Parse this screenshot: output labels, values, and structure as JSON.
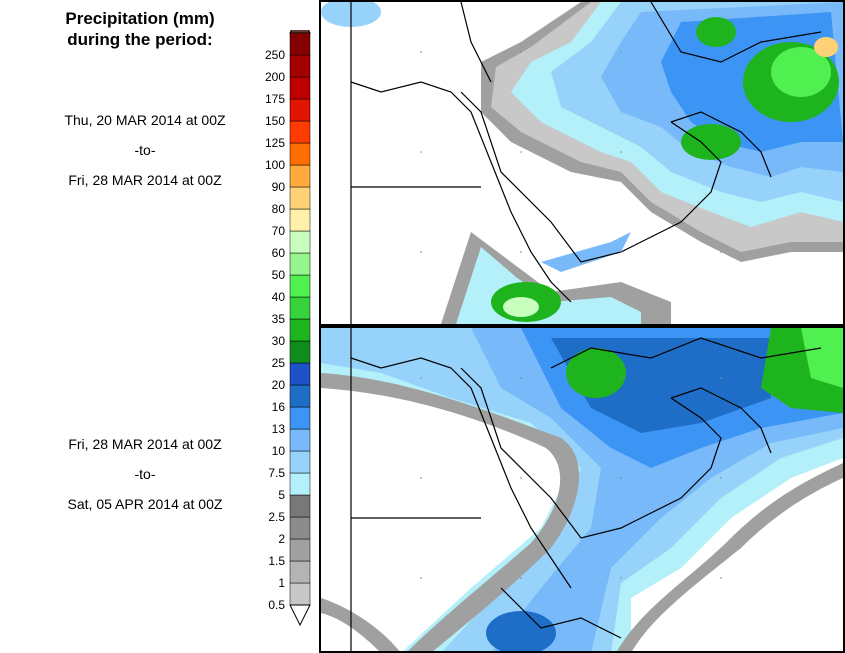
{
  "title": {
    "line1": "Precipitation (mm)",
    "line2": "during the period:"
  },
  "periods": [
    {
      "start": "Thu, 20 MAR 2014 at 00Z",
      "sep": "-to-",
      "end": "Fri, 28 MAR 2014 at 00Z"
    },
    {
      "start": "Fri, 28 MAR 2014 at 00Z",
      "sep": "-to-",
      "end": "Sat, 05 APR 2014 at 00Z"
    }
  ],
  "legend": {
    "ticks": [
      "0.5",
      "1",
      "1.5",
      "2",
      "2.5",
      "5",
      "7.5",
      "10",
      "13",
      "16",
      "20",
      "25",
      "30",
      "35",
      "40",
      "50",
      "60",
      "70",
      "80",
      "90",
      "100",
      "125",
      "150",
      "175",
      "200",
      "250"
    ],
    "colors": [
      "#c8c8c8",
      "#b4b4b4",
      "#a0a0a0",
      "#8c8c8c",
      "#787878",
      "#b4f0fa",
      "#96d2fa",
      "#78b9fa",
      "#3c95f5",
      "#1e6ec8",
      "#1e50c8",
      "#0f8c1e",
      "#1eb41e",
      "#37d23c",
      "#50f050",
      "#96f58c",
      "#c8ffbe",
      "#fff0aa",
      "#ffd278",
      "#ffaa3c",
      "#ff6e00",
      "#ff3c00",
      "#e11400",
      "#c00000",
      "#a50000",
      "#850000"
    ],
    "top_color": "#643c32",
    "bottom_color": "#ffffff"
  }
}
